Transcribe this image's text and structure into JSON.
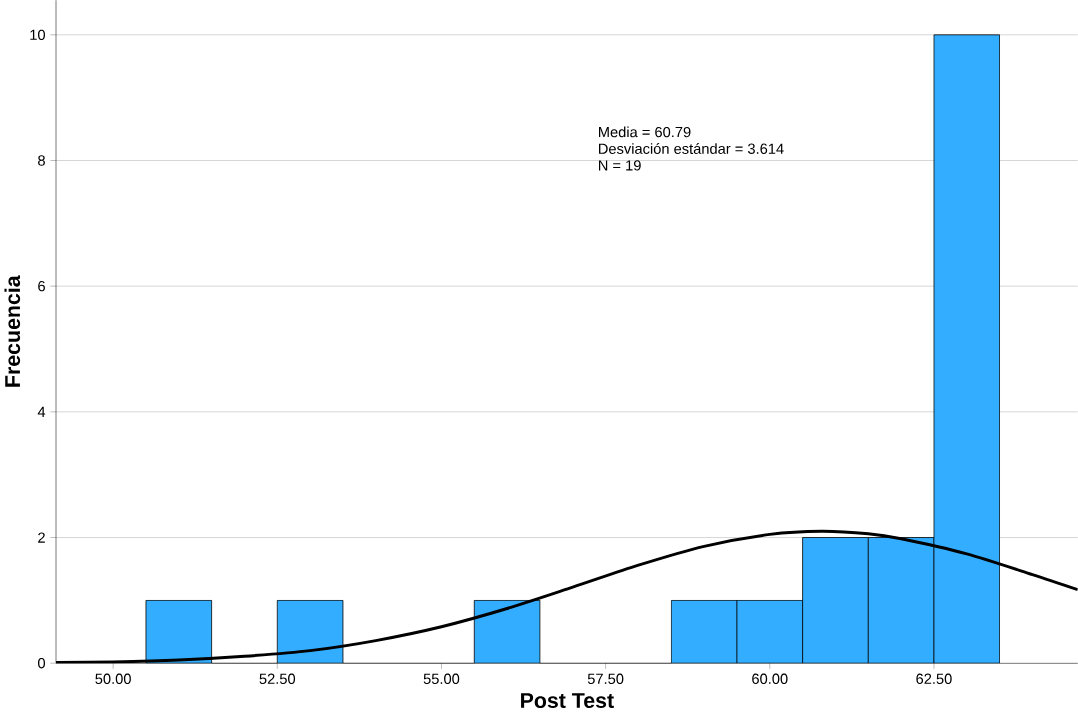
{
  "chart_data": {
    "type": "histogram",
    "xlabel": "Post Test",
    "ylabel": "Frecuencia",
    "bins": [
      50.5,
      51.5,
      52.5,
      53.5,
      54.5,
      55.5,
      56.5,
      57.5,
      58.5,
      59.5,
      60.5,
      61.5,
      62.5,
      63.5
    ],
    "values": [
      1,
      0,
      1,
      0,
      0,
      1,
      0,
      0,
      1,
      1,
      2,
      2,
      10
    ],
    "color": "#33adff",
    "series": [
      {
        "type": "line",
        "color": "#000000",
        "x": [
          49.13,
          50,
          51,
          52,
          53,
          54,
          55,
          56,
          57,
          58,
          59,
          60,
          60.79,
          61.5,
          62,
          63,
          64,
          64.69
        ],
        "values": [
          0.01,
          0.02,
          0.05,
          0.11,
          0.2,
          0.36,
          0.58,
          0.87,
          1.21,
          1.56,
          1.86,
          2.05,
          2.1,
          2.06,
          1.98,
          1.74,
          1.41,
          1.17
        ]
      }
    ],
    "xlim": [
      49.13,
      64.69
    ],
    "ylim": [
      0,
      10.55
    ],
    "xticks": [
      {
        "value": 50,
        "label": "50.00"
      },
      {
        "value": 52.5,
        "label": "52.50"
      },
      {
        "value": 55,
        "label": "55.00"
      },
      {
        "value": 57.5,
        "label": "57.50"
      },
      {
        "value": 60,
        "label": "60.00"
      },
      {
        "value": 62.5,
        "label": "62.50"
      }
    ],
    "yticks": [
      0,
      2,
      4,
      6,
      8,
      10
    ],
    "grid": "y",
    "annotations": [
      "Media = 60.79",
      "Desviación estándar = 3.614",
      "N = 19"
    ]
  }
}
